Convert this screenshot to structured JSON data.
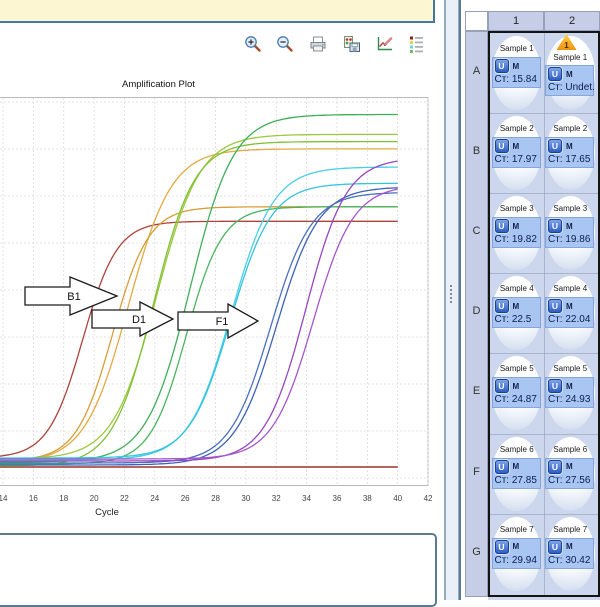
{
  "toolbar": {
    "icons": [
      "zoom-in",
      "zoom-out",
      "print",
      "export-plate",
      "plot-settings",
      "legend"
    ]
  },
  "plot": {
    "title": "Amplification Plot"
  },
  "chart_data": {
    "type": "line",
    "title": "Amplification Plot",
    "xlabel": "Cycle",
    "ylabel": "",
    "x_ticks": [
      14,
      16,
      18,
      20,
      22,
      24,
      26,
      28,
      30,
      32,
      34,
      36,
      38,
      40,
      42
    ],
    "x_data_end": 40,
    "grid": true,
    "legend_position": "none",
    "annotations": [
      {
        "label": "B1"
      },
      {
        "label": "D1"
      },
      {
        "label": "F1"
      }
    ],
    "series": [
      {
        "well": "A1",
        "sample": "Sample 1",
        "color": "#ae423a",
        "ct": 15.84,
        "plateau": 0.665,
        "k": 0.88
      },
      {
        "well": "A2",
        "sample": "Sample 1",
        "color": "#9e342d",
        "ct": null,
        "flat_level": 0.0
      },
      {
        "well": "B1",
        "sample": "Sample 2",
        "color": "#e4aa41",
        "ct": 17.97,
        "plateau": 0.865,
        "k": 0.7
      },
      {
        "well": "B2",
        "sample": "Sample 2",
        "color": "#d89e35",
        "ct": 17.65,
        "plateau": 0.705,
        "k": 0.84
      },
      {
        "well": "C1",
        "sample": "Sample 3",
        "color": "#9cc83e",
        "ct": 19.82,
        "plateau": 0.905,
        "k": 0.7
      },
      {
        "well": "C2",
        "sample": "Sample 3",
        "color": "#80c236",
        "ct": 19.86,
        "plateau": 0.885,
        "k": 0.74
      },
      {
        "well": "D1",
        "sample": "Sample 4",
        "color": "#48b55f",
        "ct": 22.5,
        "plateau": 0.705,
        "k": 0.84
      },
      {
        "well": "D2",
        "sample": "Sample 4",
        "color": "#3fae58",
        "ct": 22.04,
        "plateau": 0.96,
        "k": 0.7
      },
      {
        "well": "E1",
        "sample": "Sample 5",
        "color": "#47cfe6",
        "ct": 24.87,
        "plateau": 0.815,
        "k": 0.72
      },
      {
        "well": "E2",
        "sample": "Sample 5",
        "color": "#35c4dc",
        "ct": 24.93,
        "plateau": 0.77,
        "k": 0.74
      },
      {
        "well": "F1",
        "sample": "Sample 6",
        "color": "#3e63b6",
        "ct": 27.85,
        "plateau": 0.76,
        "k": 0.72
      },
      {
        "well": "F2",
        "sample": "Sample 6",
        "color": "#4a70c2",
        "ct": 27.56,
        "plateau": 0.745,
        "k": 0.74
      },
      {
        "well": "G1",
        "sample": "Sample 7",
        "color": "#9747c0",
        "ct": 29.94,
        "plateau": 0.84,
        "k": 0.75
      },
      {
        "well": "G2",
        "sample": "Sample 7",
        "color": "#a557cd",
        "ct": 30.42,
        "plateau": 0.765,
        "k": 0.75
      }
    ]
  },
  "plate": {
    "columns": [
      "1",
      "2"
    ],
    "rows": [
      "A",
      "B",
      "C",
      "D",
      "E",
      "F",
      "G"
    ],
    "wells": [
      {
        "row": "A",
        "col": "1",
        "sample": "Sample 1",
        "task": "U",
        "marker": "M",
        "ct_label": "Cт: 15.84"
      },
      {
        "row": "A",
        "col": "2",
        "sample": "Sample 1",
        "task": "U",
        "marker": "M",
        "ct_label": "Cт: Undet.",
        "flag": "1"
      },
      {
        "row": "B",
        "col": "1",
        "sample": "Sample 2",
        "task": "U",
        "marker": "M",
        "ct_label": "Cт: 17.97"
      },
      {
        "row": "B",
        "col": "2",
        "sample": "Sample 2",
        "task": "U",
        "marker": "M",
        "ct_label": "Cт: 17.65"
      },
      {
        "row": "C",
        "col": "1",
        "sample": "Sample 3",
        "task": "U",
        "marker": "M",
        "ct_label": "Cт: 19.82"
      },
      {
        "row": "C",
        "col": "2",
        "sample": "Sample 3",
        "task": "U",
        "marker": "M",
        "ct_label": "Cт: 19.86"
      },
      {
        "row": "D",
        "col": "1",
        "sample": "Sample 4",
        "task": "U",
        "marker": "M",
        "ct_label": "Cт: 22.5"
      },
      {
        "row": "D",
        "col": "2",
        "sample": "Sample 4",
        "task": "U",
        "marker": "M",
        "ct_label": "Cт: 22.04"
      },
      {
        "row": "E",
        "col": "1",
        "sample": "Sample 5",
        "task": "U",
        "marker": "M",
        "ct_label": "Cт: 24.87"
      },
      {
        "row": "E",
        "col": "2",
        "sample": "Sample 5",
        "task": "U",
        "marker": "M",
        "ct_label": "Cт: 24.93"
      },
      {
        "row": "F",
        "col": "1",
        "sample": "Sample 6",
        "task": "U",
        "marker": "M",
        "ct_label": "Cт: 27.85"
      },
      {
        "row": "F",
        "col": "2",
        "sample": "Sample 6",
        "task": "U",
        "marker": "M",
        "ct_label": "Cт: 27.56"
      },
      {
        "row": "G",
        "col": "1",
        "sample": "Sample 7",
        "task": "U",
        "marker": "M",
        "ct_label": "Cт: 29.94"
      },
      {
        "row": "G",
        "col": "2",
        "sample": "Sample 7",
        "task": "U",
        "marker": "M",
        "ct_label": "Cт: 30.42"
      }
    ]
  }
}
